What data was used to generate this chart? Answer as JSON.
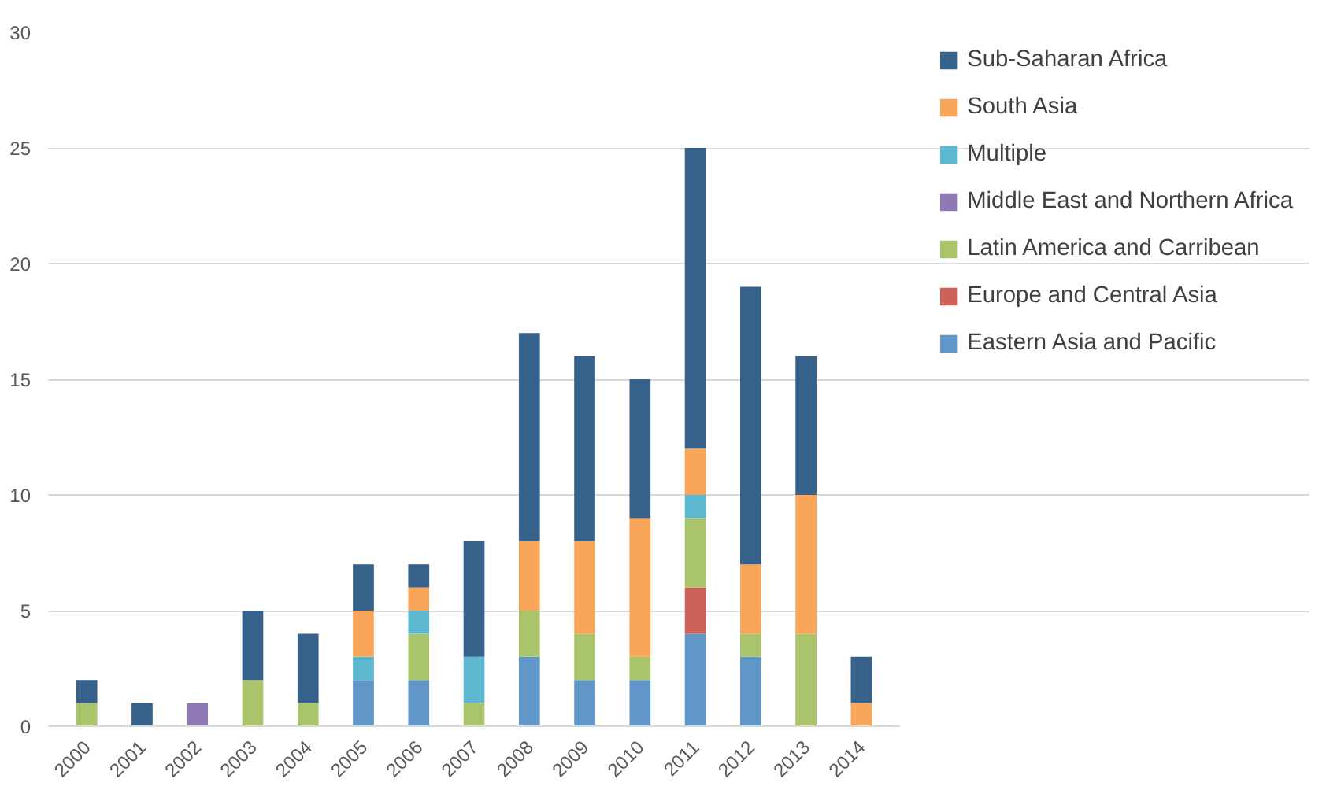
{
  "chart_data": {
    "type": "bar",
    "stacked": true,
    "categories": [
      "2000",
      "2001",
      "2002",
      "2003",
      "2004",
      "2005",
      "2006",
      "2007",
      "2008",
      "2009",
      "2010",
      "2011",
      "2012",
      "2013",
      "2014"
    ],
    "series": [
      {
        "name": "Eastern Asia and Pacific",
        "color": "#6196c8",
        "values": [
          0,
          0,
          0,
          0,
          0,
          2,
          2,
          0,
          3,
          2,
          2,
          4,
          3,
          0,
          0
        ]
      },
      {
        "name": "Europe and Central Asia",
        "color": "#cc625a",
        "values": [
          0,
          0,
          0,
          0,
          0,
          0,
          0,
          0,
          0,
          0,
          0,
          2,
          0,
          0,
          0
        ]
      },
      {
        "name": "Latin America and Carribean",
        "color": "#a9c46b",
        "values": [
          1,
          0,
          0,
          2,
          1,
          0,
          2,
          1,
          2,
          2,
          1,
          3,
          1,
          4,
          0
        ]
      },
      {
        "name": "Middle East and Northern Africa",
        "color": "#8f7ab5",
        "values": [
          0,
          0,
          1,
          0,
          0,
          0,
          0,
          0,
          0,
          0,
          0,
          0,
          0,
          0,
          0
        ]
      },
      {
        "name": "Multiple",
        "color": "#5bb8d0",
        "values": [
          0,
          0,
          0,
          0,
          0,
          1,
          1,
          2,
          0,
          0,
          0,
          1,
          0,
          0,
          0
        ]
      },
      {
        "name": "South Asia",
        "color": "#f9a65a",
        "values": [
          0,
          0,
          0,
          0,
          0,
          2,
          1,
          0,
          3,
          4,
          6,
          2,
          3,
          6,
          1
        ]
      },
      {
        "name": "Sub-Saharan Africa",
        "color": "#35618a",
        "values": [
          1,
          1,
          0,
          3,
          3,
          2,
          1,
          5,
          9,
          8,
          6,
          13,
          12,
          6,
          2
        ]
      }
    ],
    "ylim": [
      0,
      30
    ],
    "yticks": [
      0,
      5,
      10,
      15,
      20,
      25,
      30
    ],
    "grid": "y",
    "legend": "right"
  }
}
